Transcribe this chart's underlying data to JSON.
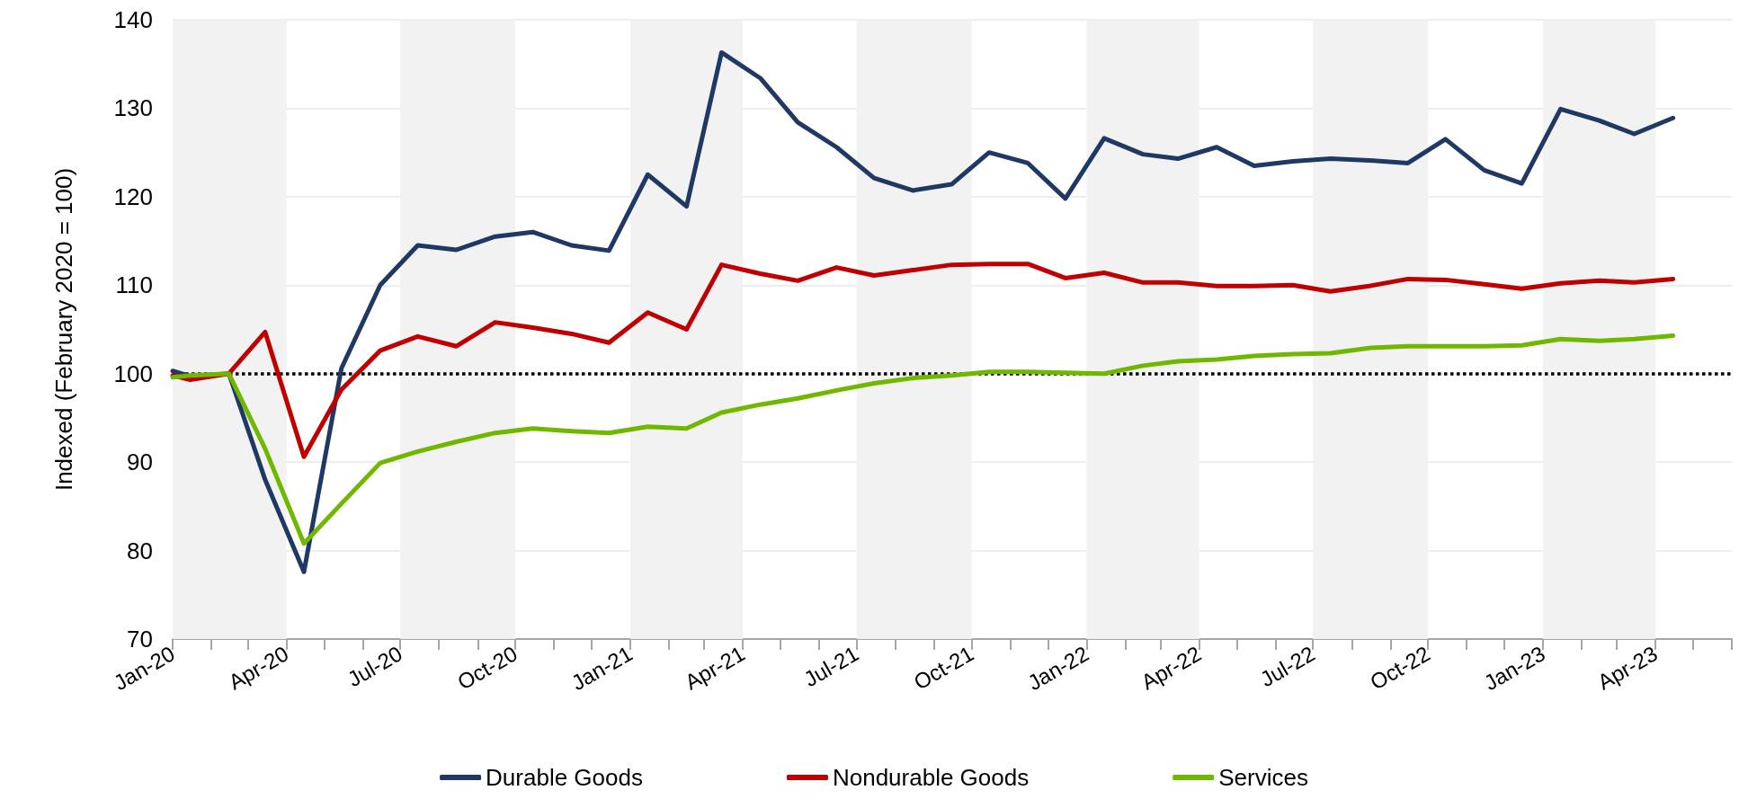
{
  "chart_data": {
    "type": "line",
    "ylabel": "Indexed (February 2020 = 100)",
    "x": [
      "2020-01-01",
      "2020-01-15",
      "2020-02-15",
      "2020-03-15",
      "2020-04-15",
      "2020-05-15",
      "2020-06-15",
      "2020-07-15",
      "2020-08-15",
      "2020-09-15",
      "2020-10-15",
      "2020-11-15",
      "2020-12-15",
      "2021-01-15",
      "2021-02-15",
      "2021-03-15",
      "2021-04-15",
      "2021-05-15",
      "2021-06-15",
      "2021-07-15",
      "2021-08-15",
      "2021-09-15",
      "2021-10-15",
      "2021-11-15",
      "2021-12-15",
      "2022-01-15",
      "2022-02-15",
      "2022-03-15",
      "2022-04-15",
      "2022-05-15",
      "2022-06-15",
      "2022-07-15",
      "2022-08-15",
      "2022-09-15",
      "2022-10-15",
      "2022-11-15",
      "2022-12-15",
      "2023-01-15",
      "2023-02-15",
      "2023-03-15",
      "2023-04-15"
    ],
    "series": [
      {
        "name": "Durable Goods",
        "color": "#1f3864",
        "values": [
          100.3,
          99.7,
          100.0,
          88.0,
          77.6,
          100.6,
          110.0,
          114.5,
          114.0,
          115.5,
          116.0,
          114.5,
          113.9,
          122.5,
          118.9,
          136.3,
          133.4,
          128.4,
          125.6,
          122.1,
          120.7,
          121.4,
          125.0,
          123.8,
          119.8,
          126.6,
          124.8,
          124.3,
          125.6,
          123.5,
          124.0,
          124.3,
          124.1,
          123.8,
          126.5,
          123.0,
          121.5,
          129.9,
          128.6,
          127.1,
          128.9
        ]
      },
      {
        "name": "Nondurable Goods",
        "color": "#c00000",
        "values": [
          99.8,
          99.3,
          100.0,
          104.7,
          90.6,
          98.2,
          102.6,
          104.2,
          103.1,
          105.8,
          105.2,
          104.5,
          103.5,
          106.9,
          105.0,
          112.3,
          111.3,
          110.5,
          112.0,
          111.1,
          111.7,
          112.3,
          112.4,
          112.4,
          110.8,
          111.4,
          110.3,
          110.3,
          109.9,
          109.9,
          110.0,
          109.3,
          109.9,
          110.7,
          110.6,
          110.1,
          109.6,
          110.2,
          110.5,
          110.3,
          110.7
        ]
      },
      {
        "name": "Services",
        "color": "#70b800",
        "values": [
          99.6,
          99.8,
          100.0,
          91.5,
          80.8,
          85.3,
          89.9,
          91.2,
          92.3,
          93.3,
          93.8,
          93.5,
          93.3,
          94.0,
          93.8,
          95.6,
          96.5,
          97.2,
          98.1,
          98.9,
          99.5,
          99.8,
          100.2,
          100.2,
          100.1,
          100.0,
          100.9,
          101.4,
          101.6,
          102.0,
          102.2,
          102.3,
          102.9,
          103.1,
          103.1,
          103.1,
          103.2,
          103.9,
          103.7,
          103.9,
          104.3
        ]
      }
    ],
    "xlim": [
      "2020-01-01",
      "2023-06-01"
    ],
    "xticks": [
      {
        "value": "2020-01-01",
        "label": "Jan-20"
      },
      {
        "value": "2020-02-01",
        "label": null
      },
      {
        "value": "2020-03-01",
        "label": null
      },
      {
        "value": "2020-04-01",
        "label": "Apr-20"
      },
      {
        "value": "2020-05-01",
        "label": null
      },
      {
        "value": "2020-06-01",
        "label": null
      },
      {
        "value": "2020-07-01",
        "label": "Jul-20"
      },
      {
        "value": "2020-08-01",
        "label": null
      },
      {
        "value": "2020-09-01",
        "label": null
      },
      {
        "value": "2020-10-01",
        "label": "Oct-20"
      },
      {
        "value": "2020-11-01",
        "label": null
      },
      {
        "value": "2020-12-01",
        "label": null
      },
      {
        "value": "2021-01-01",
        "label": "Jan-21"
      },
      {
        "value": "2021-02-01",
        "label": null
      },
      {
        "value": "2021-03-01",
        "label": null
      },
      {
        "value": "2021-04-01",
        "label": "Apr-21"
      },
      {
        "value": "2021-05-01",
        "label": null
      },
      {
        "value": "2021-06-01",
        "label": null
      },
      {
        "value": "2021-07-01",
        "label": "Jul-21"
      },
      {
        "value": "2021-08-01",
        "label": null
      },
      {
        "value": "2021-09-01",
        "label": null
      },
      {
        "value": "2021-10-01",
        "label": "Oct-21"
      },
      {
        "value": "2021-11-01",
        "label": null
      },
      {
        "value": "2021-12-01",
        "label": null
      },
      {
        "value": "2022-01-01",
        "label": "Jan-22"
      },
      {
        "value": "2022-02-01",
        "label": null
      },
      {
        "value": "2022-03-01",
        "label": null
      },
      {
        "value": "2022-04-01",
        "label": "Apr-22"
      },
      {
        "value": "2022-05-01",
        "label": null
      },
      {
        "value": "2022-06-01",
        "label": null
      },
      {
        "value": "2022-07-01",
        "label": "Jul-22"
      },
      {
        "value": "2022-08-01",
        "label": null
      },
      {
        "value": "2022-09-01",
        "label": null
      },
      {
        "value": "2022-10-01",
        "label": "Oct-22"
      },
      {
        "value": "2022-11-01",
        "label": null
      },
      {
        "value": "2022-12-01",
        "label": null
      },
      {
        "value": "2023-01-01",
        "label": "Jan-23"
      },
      {
        "value": "2023-02-01",
        "label": null
      },
      {
        "value": "2023-03-01",
        "label": null
      },
      {
        "value": "2023-04-01",
        "label": "Apr-23"
      },
      {
        "value": "2023-05-01",
        "label": null
      },
      {
        "value": "2023-06-01",
        "label": null
      }
    ],
    "ylim": [
      70,
      140
    ],
    "yticks": [
      70,
      80,
      90,
      100,
      110,
      120,
      130,
      140
    ],
    "grid": "y",
    "legend": "bottom",
    "marker": "none",
    "line_style": "solid",
    "ref_lines": [
      {
        "axis": "y",
        "value": 100,
        "color": "#000000",
        "line_style": "dotted"
      }
    ],
    "bands": [
      {
        "axis": "x",
        "from": "2020-01-01",
        "to": "2020-04-01",
        "color": "#f2f2f2"
      },
      {
        "axis": "x",
        "from": "2020-07-01",
        "to": "2020-10-01",
        "color": "#f2f2f2"
      },
      {
        "axis": "x",
        "from": "2021-01-01",
        "to": "2021-04-01",
        "color": "#f2f2f2"
      },
      {
        "axis": "x",
        "from": "2021-07-01",
        "to": "2021-10-01",
        "color": "#f2f2f2"
      },
      {
        "axis": "x",
        "from": "2022-01-01",
        "to": "2022-04-01",
        "color": "#f2f2f2"
      },
      {
        "axis": "x",
        "from": "2022-07-01",
        "to": "2022-10-01",
        "color": "#f2f2f2"
      },
      {
        "axis": "x",
        "from": "2023-01-01",
        "to": "2023-04-01",
        "color": "#f2f2f2"
      }
    ]
  }
}
